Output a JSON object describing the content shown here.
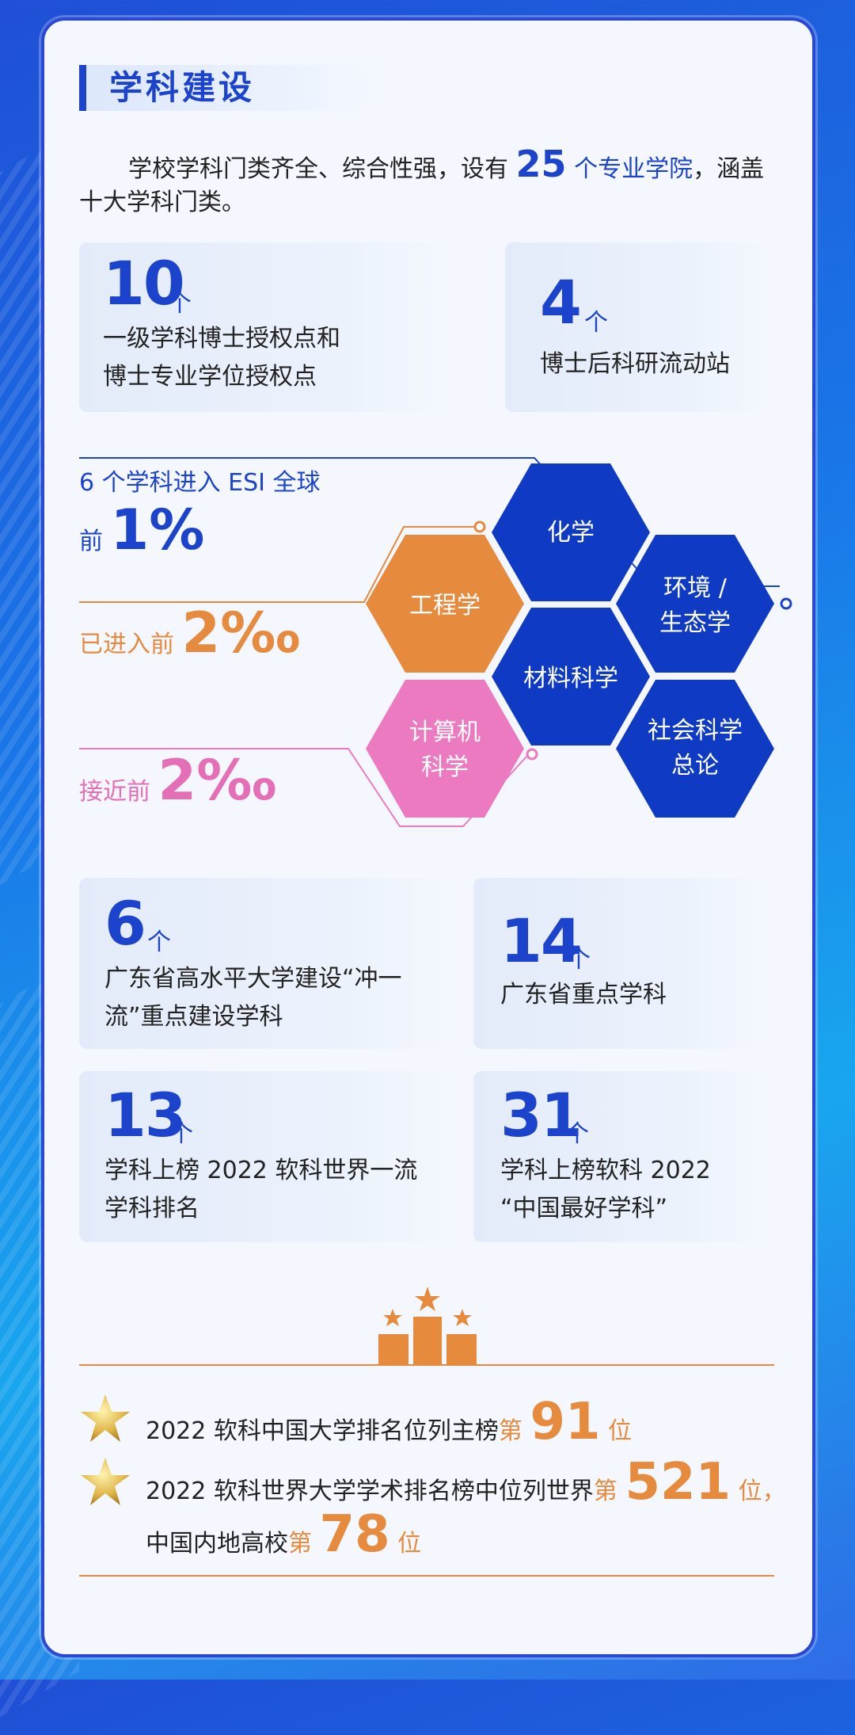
{
  "section": {
    "title": "学科建设"
  },
  "intro": {
    "prefix": "学校学科门类齐全、综合性强，设有 ",
    "number": "25",
    "highlight": " 个专业学院",
    "suffix": "，涵盖十大学科门类。"
  },
  "stats_top": [
    {
      "number": "10",
      "unit": "个",
      "line1": "一级学科博士授权点和",
      "line2": "博士专业学位授权点"
    },
    {
      "number": "4",
      "unit": "个",
      "line1": "博士后科研流动站",
      "line2": ""
    }
  ],
  "esi": {
    "title": "6 个学科进入 ESI 全球",
    "top_prefix": "前 ",
    "top_value": "1%",
    "entered_prefix": "已进入前 ",
    "entered_value": "2‰",
    "near_prefix": "接近前 ",
    "near_value": "2‰",
    "hexes": {
      "chem": "化学",
      "env1": "环境 /",
      "env2": "生态学",
      "eng": "工程学",
      "mat": "材料科学",
      "cs1": "计算机",
      "cs2": "科学",
      "soc1": "社会科学",
      "soc2": "总论"
    },
    "colors": {
      "blue": "#0f3bc4",
      "orange": "#e68a3e",
      "pink": "#eb7ac0"
    }
  },
  "stats_mid": [
    {
      "number": "6",
      "unit": "个",
      "line1": "广东省高水平大学建设“冲一",
      "line2": "流”重点建设学科"
    },
    {
      "number": "14",
      "unit": "个",
      "line1": "广东省重点学科",
      "line2": ""
    },
    {
      "number": "13",
      "unit": "个",
      "line1": "学科上榜 2022 软科世界一流",
      "line2": "学科排名"
    },
    {
      "number": "31",
      "unit": "个",
      "line1": "学科上榜软科 2022",
      "line2": "“中国最好学科”"
    }
  ],
  "rankings": [
    {
      "text": "2022 软科中国大学排名位列主榜",
      "pre": "第 ",
      "num": "91",
      "post": " 位"
    },
    {
      "text": "2022 软科世界大学学术排名榜中位列世界",
      "pre": "第 ",
      "num": "521",
      "post": " 位，",
      "text2": "中国内地高校",
      "pre2": "第 ",
      "num2": "78",
      "post2": " 位"
    }
  ]
}
